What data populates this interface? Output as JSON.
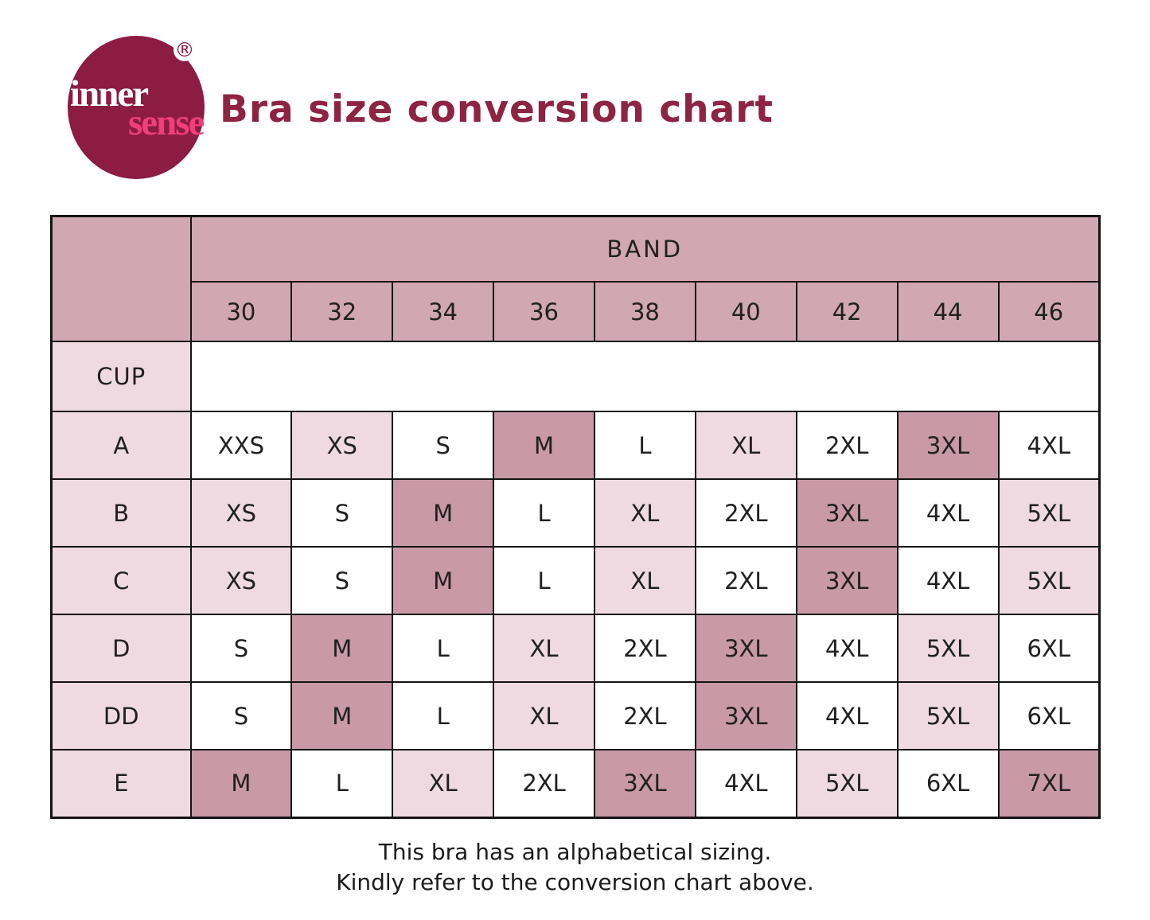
{
  "logo": {
    "inner_text": "inner",
    "sense_text": "sense",
    "registered_mark": "®"
  },
  "title": {
    "text": "Bra size conversion chart"
  },
  "table": {
    "band_header": "BAND",
    "cup_header": "CUP",
    "band_values": [
      "30",
      "32",
      "34",
      "36",
      "38",
      "40",
      "42",
      "44",
      "46"
    ],
    "rows": [
      {
        "cup": "A",
        "cells": [
          {
            "label": "XXS",
            "tone": "white"
          },
          {
            "label": "XS",
            "tone": "light"
          },
          {
            "label": "S",
            "tone": "white"
          },
          {
            "label": "M",
            "tone": "highlight"
          },
          {
            "label": "L",
            "tone": "white"
          },
          {
            "label": "XL",
            "tone": "light"
          },
          {
            "label": "2XL",
            "tone": "white"
          },
          {
            "label": "3XL",
            "tone": "highlight"
          },
          {
            "label": "4XL",
            "tone": "white"
          }
        ]
      },
      {
        "cup": "B",
        "cells": [
          {
            "label": "XS",
            "tone": "light"
          },
          {
            "label": "S",
            "tone": "white"
          },
          {
            "label": "M",
            "tone": "highlight"
          },
          {
            "label": "L",
            "tone": "white"
          },
          {
            "label": "XL",
            "tone": "light"
          },
          {
            "label": "2XL",
            "tone": "white"
          },
          {
            "label": "3XL",
            "tone": "highlight"
          },
          {
            "label": "4XL",
            "tone": "white"
          },
          {
            "label": "5XL",
            "tone": "light"
          }
        ]
      },
      {
        "cup": "C",
        "cells": [
          {
            "label": "XS",
            "tone": "light"
          },
          {
            "label": "S",
            "tone": "white"
          },
          {
            "label": "M",
            "tone": "highlight"
          },
          {
            "label": "L",
            "tone": "white"
          },
          {
            "label": "XL",
            "tone": "light"
          },
          {
            "label": "2XL",
            "tone": "white"
          },
          {
            "label": "3XL",
            "tone": "highlight"
          },
          {
            "label": "4XL",
            "tone": "white"
          },
          {
            "label": "5XL",
            "tone": "light"
          }
        ]
      },
      {
        "cup": "D",
        "cells": [
          {
            "label": "S",
            "tone": "white"
          },
          {
            "label": "M",
            "tone": "highlight"
          },
          {
            "label": "L",
            "tone": "white"
          },
          {
            "label": "XL",
            "tone": "light"
          },
          {
            "label": "2XL",
            "tone": "white"
          },
          {
            "label": "3XL",
            "tone": "highlight"
          },
          {
            "label": "4XL",
            "tone": "white"
          },
          {
            "label": "5XL",
            "tone": "light"
          },
          {
            "label": "6XL",
            "tone": "white"
          }
        ]
      },
      {
        "cup": "DD",
        "cells": [
          {
            "label": "S",
            "tone": "white"
          },
          {
            "label": "M",
            "tone": "highlight"
          },
          {
            "label": "L",
            "tone": "white"
          },
          {
            "label": "XL",
            "tone": "light"
          },
          {
            "label": "2XL",
            "tone": "white"
          },
          {
            "label": "3XL",
            "tone": "highlight"
          },
          {
            "label": "4XL",
            "tone": "white"
          },
          {
            "label": "5XL",
            "tone": "light"
          },
          {
            "label": "6XL",
            "tone": "white"
          }
        ]
      },
      {
        "cup": "E",
        "cells": [
          {
            "label": "M",
            "tone": "highlight"
          },
          {
            "label": "L",
            "tone": "white"
          },
          {
            "label": "XL",
            "tone": "light"
          },
          {
            "label": "2XL",
            "tone": "white"
          },
          {
            "label": "3XL",
            "tone": "highlight"
          },
          {
            "label": "4XL",
            "tone": "white"
          },
          {
            "label": "5XL",
            "tone": "light"
          },
          {
            "label": "6XL",
            "tone": "white"
          },
          {
            "label": "7XL",
            "tone": "highlight"
          }
        ]
      }
    ]
  },
  "footer": {
    "line1": "This bra has an alphabetical sizing.",
    "line2": "Kindly refer to the conversion chart above."
  },
  "colors": {
    "header_cell": "#d1a7b3",
    "light_cell": "#eedae0",
    "highlight_cell": "#c999a8",
    "white_cell": "#ffffff",
    "border": "#141414",
    "title": "#8e2342",
    "logo_circle": "#8c1c41",
    "logo_sense": "#f23e7c",
    "text": "#202020"
  },
  "chart_data": {
    "type": "table",
    "title": "Bra size conversion chart",
    "column_group_label": "BAND",
    "row_group_label": "CUP",
    "columns": [
      "30",
      "32",
      "34",
      "36",
      "38",
      "40",
      "42",
      "44",
      "46"
    ],
    "rows": [
      {
        "cup": "A",
        "sizes": [
          "XXS",
          "XS",
          "S",
          "M",
          "L",
          "XL",
          "2XL",
          "3XL",
          "4XL"
        ]
      },
      {
        "cup": "B",
        "sizes": [
          "XS",
          "S",
          "M",
          "L",
          "XL",
          "2XL",
          "3XL",
          "4XL",
          "5XL"
        ]
      },
      {
        "cup": "C",
        "sizes": [
          "XS",
          "S",
          "M",
          "L",
          "XL",
          "2XL",
          "3XL",
          "4XL",
          "5XL"
        ]
      },
      {
        "cup": "D",
        "sizes": [
          "S",
          "M",
          "L",
          "XL",
          "2XL",
          "3XL",
          "4XL",
          "5XL",
          "6XL"
        ]
      },
      {
        "cup": "DD",
        "sizes": [
          "S",
          "M",
          "L",
          "XL",
          "2XL",
          "3XL",
          "4XL",
          "5XL",
          "6XL"
        ]
      },
      {
        "cup": "E",
        "sizes": [
          "M",
          "L",
          "XL",
          "2XL",
          "3XL",
          "4XL",
          "5XL",
          "6XL",
          "7XL"
        ]
      }
    ],
    "notes": [
      "This bra has an alphabetical sizing.",
      "Kindly refer to the conversion chart above."
    ]
  }
}
